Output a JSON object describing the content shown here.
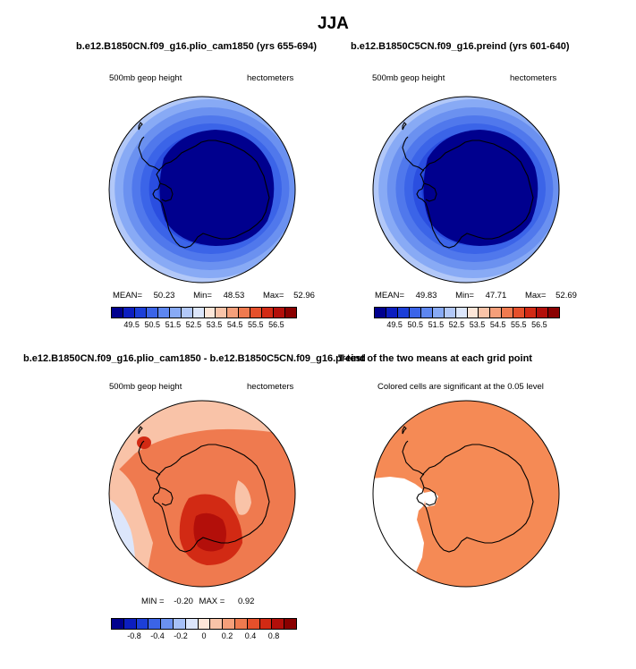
{
  "figure": {
    "title": "JJA",
    "panels": [
      {
        "title": "b.e12.B1850CN.f09_g16.plio_cam1850 (yrs 655-694)",
        "left_label": "500mb geop height",
        "right_label": "hectometers",
        "stats": {
          "mean_label": "MEAN=",
          "mean": "50.23",
          "min_label": "Min=",
          "min": "48.53",
          "max_label": "Max=",
          "max": "52.96"
        }
      },
      {
        "title": "b.e12.B1850C5CN.f09_g16.preind (yrs 601-640)",
        "left_label": "500mb geop height",
        "right_label": "hectometers",
        "stats": {
          "mean_label": "MEAN=",
          "mean": "49.83",
          "min_label": "Min=",
          "min": "47.71",
          "max_label": "Max=",
          "max": "52.69"
        }
      },
      {
        "title": "b.e12.B1850CN.f09_g16.plio_cam1850 - b.e12.B1850C5CN.f09_g16.preind",
        "left_label": "500mb geop height",
        "right_label": "hectometers",
        "stats": {
          "min_label": "MIN =",
          "min": "-0.20",
          "max_label": "MAX =",
          "max": "0.92"
        }
      },
      {
        "title": "T-test of the two means at each grid point",
        "center_label": "Colored cells are significant at the 0.05 level"
      }
    ],
    "colorbar_top": {
      "ticks": [
        "49.5",
        "50.5",
        "51.5",
        "52.5",
        "53.5",
        "54.5",
        "55.5",
        "56.5"
      ],
      "colors": [
        "#00008e",
        "#0c1ec0",
        "#1c3fd8",
        "#3b64e8",
        "#5d86f0",
        "#88aaf5",
        "#b2c8f8",
        "#dce6fb",
        "#fde6d8",
        "#f9c3a8",
        "#f59f7a",
        "#ef7a4f",
        "#e5502b",
        "#d22a14",
        "#b30f0a",
        "#8a0000"
      ]
    },
    "colorbar_bottom": {
      "ticks": [
        "-0.8",
        "-0.4",
        "-0.2",
        "0",
        "0.2",
        "0.4",
        "0.8"
      ],
      "colors": [
        "#00008e",
        "#0c1ec0",
        "#1c3fd8",
        "#3b64e8",
        "#6b91f0",
        "#a6c0f7",
        "#dce6fb",
        "#fde6d8",
        "#f9c3a8",
        "#f59f7a",
        "#ef7a4f",
        "#e5502b",
        "#d22a14",
        "#b30f0a",
        "#8a0000"
      ]
    },
    "map_colors": {
      "ring_colors": [
        "#dce6fb",
        "#b2c8f8",
        "#88aaf5",
        "#6b91f0",
        "#5078ec",
        "#3b64e8",
        "#2a4ee0",
        "#1c3fd8",
        "#0c28c8"
      ],
      "core": "#00008e",
      "diff_base": "#ef7a4f",
      "diff_light": "#f9c3a8",
      "diff_dark": "#d22a14",
      "diff_darker": "#b30f0a",
      "diff_blue_light": "#dce6fb",
      "diff_blue": "#b2c8f8",
      "ttest": "#f58a55",
      "land_outline": "#000000"
    }
  }
}
